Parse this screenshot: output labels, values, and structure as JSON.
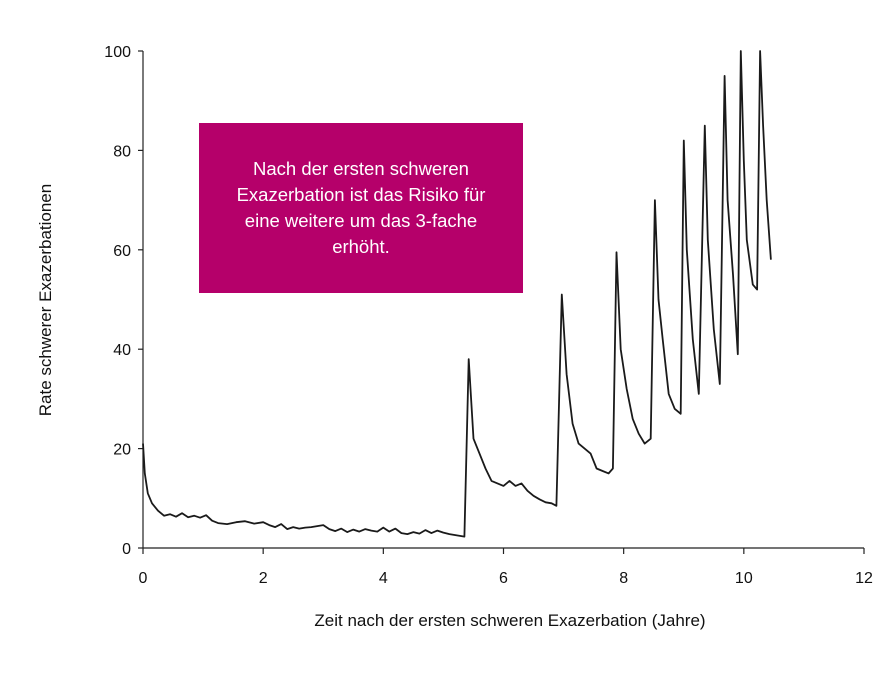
{
  "chart_data": {
    "type": "line",
    "title": "",
    "xlabel": "Zeit nach der ersten schweren Exazerbation (Jahre)",
    "ylabel": "Rate schwerer Exazerbationen",
    "xlim": [
      0,
      12
    ],
    "ylim": [
      0,
      100
    ],
    "xticks": [
      0,
      2,
      4,
      6,
      8,
      10,
      12
    ],
    "yticks": [
      0,
      20,
      40,
      60,
      80,
      100
    ],
    "grid": false,
    "legend": "none",
    "line_color": "#1a1a1a",
    "series": [
      {
        "x": [
          0,
          0.03,
          0.08,
          0.15,
          0.25,
          0.35,
          0.45,
          0.55,
          0.65,
          0.75,
          0.85,
          0.95,
          1.05,
          1.15,
          1.25,
          1.4,
          1.55,
          1.7,
          1.85,
          2.0,
          2.1,
          2.2,
          2.3,
          2.4,
          2.5,
          2.6,
          2.7,
          2.8,
          2.9,
          3.0,
          3.1,
          3.2,
          3.3,
          3.4,
          3.5,
          3.6,
          3.7,
          3.8,
          3.9,
          4.0,
          4.1,
          4.2,
          4.3,
          4.4,
          4.5,
          4.6,
          4.7,
          4.8,
          4.9,
          5.0,
          5.1,
          5.2,
          5.3,
          5.35,
          5.42,
          5.5,
          5.6,
          5.7,
          5.8,
          5.9,
          6.0,
          6.1,
          6.2,
          6.3,
          6.4,
          6.5,
          6.6,
          6.7,
          6.8,
          6.88,
          6.97,
          7.05,
          7.15,
          7.25,
          7.35,
          7.45,
          7.55,
          7.65,
          7.75,
          7.82,
          7.88,
          7.95,
          8.05,
          8.15,
          8.25,
          8.35,
          8.45,
          8.52,
          8.58,
          8.65,
          8.75,
          8.85,
          8.95,
          9.0,
          9.05,
          9.15,
          9.25,
          9.35,
          9.4,
          9.5,
          9.6,
          9.68,
          9.73,
          9.82,
          9.9,
          9.95,
          10.0,
          10.05,
          10.15,
          10.22,
          10.27,
          10.32,
          10.38,
          10.45
        ],
        "y": [
          21,
          15,
          11,
          9,
          7.5,
          6.5,
          6.8,
          6.3,
          7,
          6.2,
          6.5,
          6.1,
          6.6,
          5.5,
          5,
          4.8,
          5.2,
          5.4,
          4.9,
          5.2,
          4.6,
          4.2,
          4.8,
          3.8,
          4.2,
          3.9,
          4.1,
          4.2,
          4.4,
          4.6,
          3.8,
          3.4,
          3.9,
          3.2,
          3.7,
          3.3,
          3.8,
          3.5,
          3.3,
          4.1,
          3.3,
          3.9,
          3.0,
          2.8,
          3.2,
          2.9,
          3.6,
          3.0,
          3.5,
          3.1,
          2.8,
          2.6,
          2.4,
          2.3,
          38,
          22,
          19,
          16,
          13.5,
          13,
          12.5,
          13.5,
          12.5,
          13,
          11.5,
          10.5,
          9.8,
          9.2,
          9,
          8.5,
          51,
          35,
          25,
          21,
          20,
          19,
          16,
          15.5,
          15,
          16,
          59.5,
          40,
          32,
          26,
          23,
          21,
          22,
          70,
          50,
          42,
          31,
          28,
          27,
          82,
          60,
          42,
          31,
          85,
          62,
          44,
          33,
          95,
          70,
          55,
          39,
          100,
          78,
          62,
          53,
          52,
          100,
          85,
          70,
          58
        ]
      }
    ],
    "annotation": "Nach der ersten schweren Exazerbation ist das Risiko für eine weitere um das 3-fache erhöht.",
    "annotation_color": "#b5006a"
  }
}
